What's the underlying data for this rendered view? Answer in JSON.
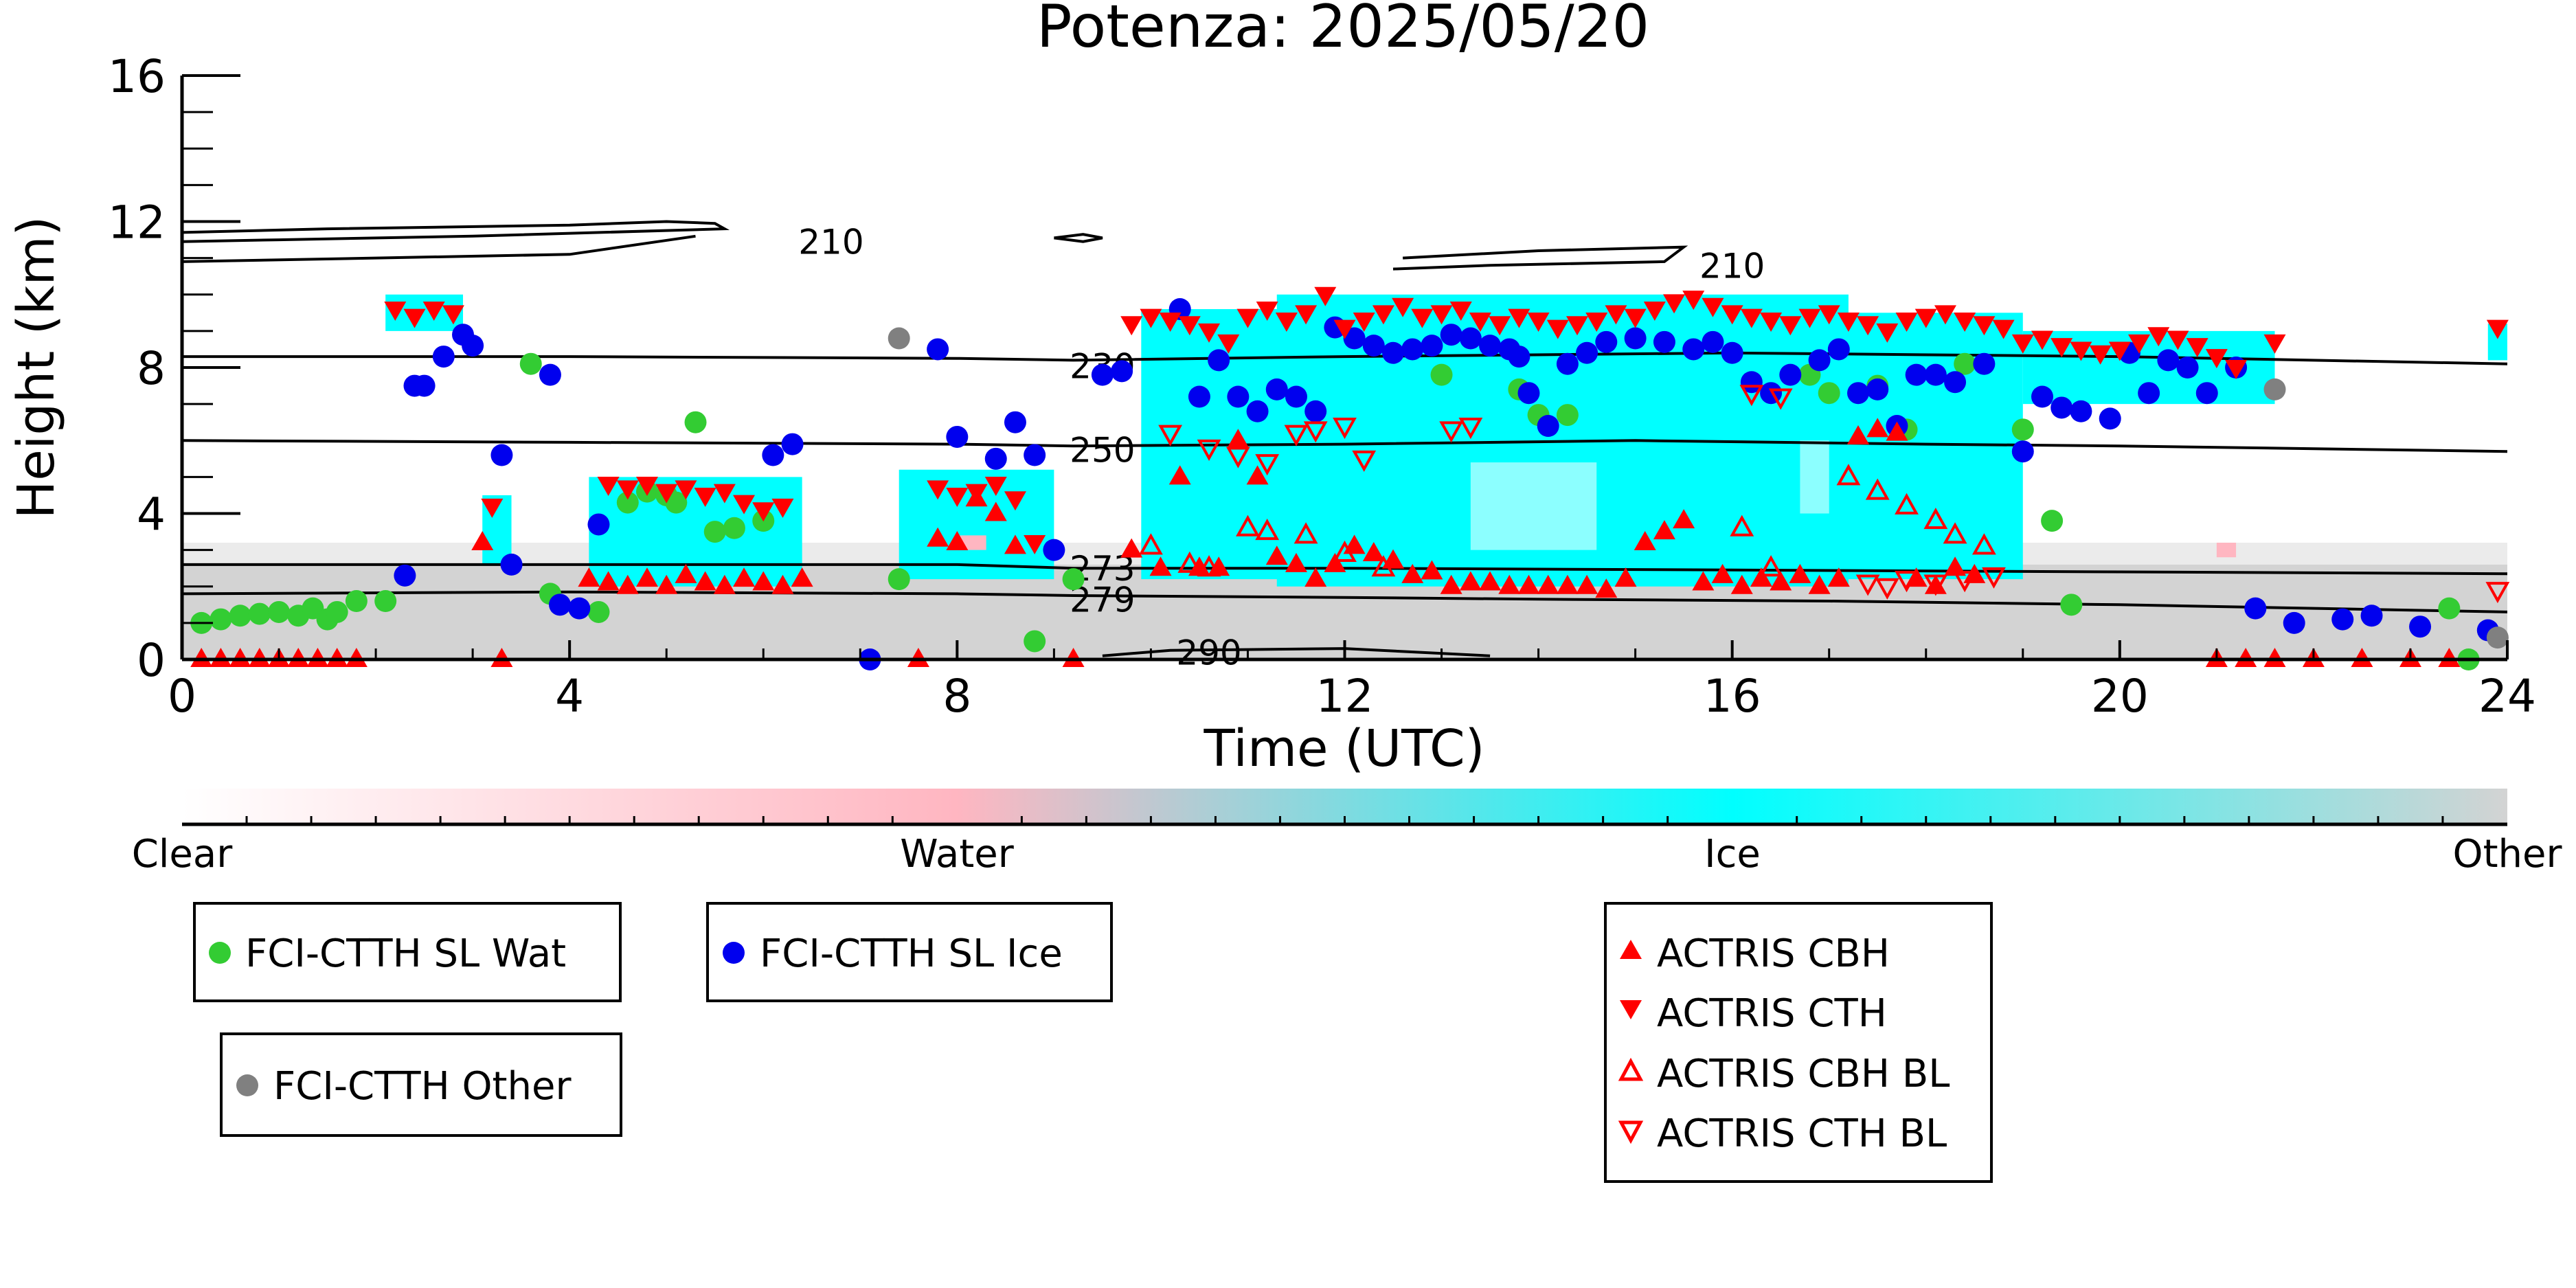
{
  "chart_data": {
    "type": "scatter",
    "title": "Potenza: 2025/05/20",
    "xlabel": "Time (UTC)",
    "ylabel": "Height (km)",
    "xlim": [
      0,
      24
    ],
    "ylim": [
      0,
      16
    ],
    "x_ticks": [
      "0",
      "4",
      "8",
      "12",
      "16",
      "20",
      "24"
    ],
    "y_ticks": [
      "0",
      "4",
      "8",
      "12",
      "16"
    ],
    "colorbar": {
      "labels": [
        "Clear",
        "Water",
        "Ice",
        "Other"
      ],
      "colors": [
        "#ffffff",
        "#ffb6c1",
        "#00ffff",
        "#d3d3d3"
      ]
    },
    "contours": [
      {
        "label": "210",
        "points": [
          [
            0,
            11.7
          ],
          [
            1.5,
            11.8
          ],
          [
            4,
            11.9
          ],
          [
            5,
            12
          ],
          [
            5.5,
            11.95
          ],
          [
            5.6,
            11.8
          ],
          [
            3,
            11.6
          ],
          [
            1,
            11.5
          ],
          [
            0,
            11.45
          ]
        ]
      },
      {
        "label": "210",
        "points": [
          [
            0,
            10.9
          ],
          [
            2,
            11.0
          ],
          [
            4,
            11.1
          ],
          [
            5.3,
            11.6
          ]
        ]
      },
      {
        "label": "210",
        "points": [
          [
            9.0,
            11.55
          ],
          [
            9.3,
            11.45
          ],
          [
            9.5,
            11.55
          ],
          [
            9.3,
            11.65
          ],
          [
            9.0,
            11.55
          ]
        ]
      },
      {
        "label": "210",
        "points": [
          [
            12.5,
            10.7
          ],
          [
            13.5,
            10.8
          ],
          [
            15.3,
            10.9
          ],
          [
            15.5,
            11.3
          ],
          [
            14,
            11.2
          ],
          [
            12.6,
            11.0
          ]
        ]
      },
      {
        "label": "230",
        "points": [
          [
            0,
            8.3
          ],
          [
            4,
            8.3
          ],
          [
            8,
            8.25
          ],
          [
            9.2,
            8.2
          ],
          [
            12,
            8.3
          ],
          [
            16,
            8.4
          ],
          [
            20,
            8.3
          ],
          [
            24,
            8.1
          ]
        ]
      },
      {
        "label": "250",
        "points": [
          [
            0,
            6.0
          ],
          [
            4,
            5.95
          ],
          [
            8,
            5.9
          ],
          [
            9.2,
            5.85
          ],
          [
            12,
            5.9
          ],
          [
            15,
            6.0
          ],
          [
            18,
            5.9
          ],
          [
            20,
            5.85
          ],
          [
            24,
            5.7
          ]
        ]
      },
      {
        "label": "273",
        "points": [
          [
            0,
            2.6
          ],
          [
            4,
            2.6
          ],
          [
            8,
            2.6
          ],
          [
            9.2,
            2.5
          ],
          [
            12,
            2.5
          ],
          [
            16,
            2.45
          ],
          [
            20,
            2.4
          ],
          [
            24,
            2.35
          ]
        ]
      },
      {
        "label": "279",
        "points": [
          [
            0,
            1.8
          ],
          [
            4,
            1.85
          ],
          [
            8,
            1.8
          ],
          [
            9.2,
            1.75
          ],
          [
            12,
            1.7
          ],
          [
            14,
            1.65
          ],
          [
            17,
            1.6
          ],
          [
            20,
            1.5
          ],
          [
            24,
            1.3
          ]
        ]
      },
      {
        "label": "290",
        "points": [
          [
            9.5,
            0.1
          ],
          [
            10.2,
            0.25
          ],
          [
            12,
            0.3
          ],
          [
            13.5,
            0.1
          ]
        ]
      }
    ],
    "series": [
      {
        "name": "FCI-CTTH SL Wat",
        "color": "#33cc33",
        "marker": "circle",
        "x": [
          0.2,
          0.4,
          0.6,
          0.8,
          1.0,
          1.2,
          1.35,
          1.5,
          1.6,
          1.8,
          2.1,
          3.6,
          3.8,
          4.3,
          4.6,
          4.8,
          5.0,
          5.1,
          5.3,
          5.5,
          5.7,
          6.0,
          7.4,
          8.8,
          9.2,
          13.0,
          13.8,
          14.0,
          14.3,
          16.8,
          17.0,
          17.5,
          17.8,
          18.4,
          19.0,
          19.3,
          19.5,
          23.4,
          23.6
        ],
        "y": [
          1.0,
          1.1,
          1.2,
          1.25,
          1.3,
          1.2,
          1.4,
          1.1,
          1.3,
          1.6,
          1.6,
          8.1,
          1.8,
          1.3,
          4.3,
          4.6,
          4.5,
          4.3,
          6.5,
          3.5,
          3.6,
          3.8,
          2.2,
          0.5,
          2.2,
          7.8,
          7.4,
          6.7,
          6.7,
          7.8,
          7.3,
          7.5,
          6.3,
          8.1,
          6.3,
          3.8,
          1.5,
          1.4,
          0.0
        ]
      },
      {
        "name": "FCI-CTTH SL Ice",
        "color": "#0000ee",
        "marker": "circle",
        "x": [
          2.3,
          2.4,
          2.5,
          2.7,
          2.9,
          3.0,
          3.3,
          3.4,
          3.8,
          3.9,
          4.1,
          4.3,
          6.1,
          6.3,
          7.1,
          7.8,
          8.0,
          8.4,
          8.6,
          8.8,
          9.0,
          9.5,
          9.7,
          10.3,
          10.5,
          10.7,
          10.9,
          11.1,
          11.3,
          11.5,
          11.7,
          11.9,
          12.1,
          12.3,
          12.5,
          12.7,
          12.9,
          13.1,
          13.3,
          13.5,
          13.7,
          13.8,
          13.9,
          14.1,
          14.3,
          14.5,
          14.7,
          15.0,
          15.3,
          15.6,
          15.8,
          16.0,
          16.2,
          16.4,
          16.6,
          16.9,
          17.1,
          17.3,
          17.5,
          17.7,
          17.9,
          18.1,
          18.3,
          18.6,
          19.0,
          19.2,
          19.4,
          19.6,
          19.9,
          20.1,
          20.3,
          20.5,
          20.7,
          20.9,
          21.2,
          21.4,
          21.8,
          22.3,
          22.6,
          23.1,
          23.8
        ],
        "y": [
          2.3,
          7.5,
          7.5,
          8.3,
          8.9,
          8.6,
          5.6,
          2.6,
          7.8,
          1.5,
          1.4,
          3.7,
          5.6,
          5.9,
          0.0,
          8.5,
          6.1,
          5.5,
          6.5,
          5.6,
          3.0,
          7.8,
          7.9,
          9.6,
          7.2,
          8.2,
          7.2,
          6.8,
          7.4,
          7.2,
          6.8,
          9.1,
          8.8,
          8.6,
          8.4,
          8.5,
          8.6,
          8.9,
          8.8,
          8.6,
          8.5,
          8.3,
          7.3,
          6.4,
          8.1,
          8.4,
          8.7,
          8.8,
          8.7,
          8.5,
          8.7,
          8.4,
          7.6,
          7.3,
          7.8,
          8.2,
          8.5,
          7.3,
          7.4,
          6.4,
          7.8,
          7.8,
          7.6,
          8.1,
          5.7,
          7.2,
          6.9,
          6.8,
          6.6,
          8.4,
          7.3,
          8.2,
          8.0,
          7.3,
          8.0,
          1.4,
          1.0,
          1.1,
          1.2,
          0.9,
          0.8
        ]
      },
      {
        "name": "FCI-CTTH Other",
        "color": "#808080",
        "marker": "circle",
        "x": [
          7.4,
          21.6,
          23.9
        ],
        "y": [
          8.8,
          7.4,
          0.6
        ]
      },
      {
        "name": "ACTRIS CBH",
        "color": "#ff0000",
        "marker": "triangle-up",
        "x": [
          0.2,
          0.4,
          0.6,
          0.8,
          1.0,
          1.2,
          1.4,
          1.6,
          1.8,
          3.1,
          3.3,
          4.2,
          4.4,
          4.6,
          4.8,
          5.0,
          5.2,
          5.4,
          5.6,
          5.8,
          6.0,
          6.2,
          6.4,
          7.6,
          7.8,
          8.0,
          8.2,
          8.4,
          8.6,
          9.2,
          9.8,
          10.1,
          10.3,
          10.5,
          10.7,
          10.9,
          11.1,
          11.3,
          11.5,
          11.7,
          11.9,
          12.1,
          12.3,
          12.5,
          12.7,
          12.9,
          13.1,
          13.3,
          13.5,
          13.7,
          13.9,
          14.1,
          14.3,
          14.5,
          14.7,
          14.9,
          15.1,
          15.3,
          15.5,
          15.7,
          15.9,
          16.1,
          16.3,
          16.5,
          16.7,
          16.9,
          17.1,
          17.3,
          17.5,
          17.7,
          17.9,
          18.1,
          18.3,
          18.5,
          21.0,
          21.3,
          21.6,
          22.0,
          22.5,
          23.0,
          23.4
        ],
        "y": [
          0.0,
          0.0,
          0.0,
          0.0,
          0.0,
          0.0,
          0.0,
          0.0,
          0.0,
          3.2,
          0.0,
          2.2,
          2.1,
          2.0,
          2.2,
          2.0,
          2.3,
          2.1,
          2.0,
          2.2,
          2.1,
          2.0,
          2.2,
          0.0,
          3.3,
          3.2,
          4.4,
          4.0,
          3.1,
          0.0,
          3.0,
          2.5,
          5.0,
          2.5,
          2.5,
          6.0,
          5.0,
          2.8,
          2.6,
          2.2,
          2.6,
          3.1,
          2.9,
          2.7,
          2.3,
          2.4,
          2.0,
          2.1,
          2.1,
          2.0,
          2.0,
          2.0,
          2.0,
          2.0,
          1.9,
          2.2,
          3.2,
          3.5,
          3.8,
          2.1,
          2.3,
          2.0,
          2.2,
          2.1,
          2.3,
          2.0,
          2.2,
          6.1,
          6.3,
          6.2,
          2.2,
          2.0,
          2.5,
          2.3,
          0.0,
          0.0,
          0.0,
          0.0,
          0.0,
          0.0,
          0.0
        ]
      },
      {
        "name": "ACTRIS CTH",
        "color": "#ff0000",
        "marker": "triangle-down",
        "x": [
          2.2,
          2.4,
          2.6,
          2.8,
          3.2,
          4.4,
          4.6,
          4.8,
          5.0,
          5.2,
          5.4,
          5.6,
          5.8,
          6.0,
          6.2,
          7.8,
          8.0,
          8.2,
          8.4,
          8.6,
          8.8,
          9.8,
          10.0,
          10.2,
          10.4,
          10.6,
          10.8,
          11.0,
          11.2,
          11.4,
          11.6,
          11.8,
          12.0,
          12.2,
          12.4,
          12.6,
          12.8,
          13.0,
          13.2,
          13.4,
          13.6,
          13.8,
          14.0,
          14.2,
          14.4,
          14.6,
          14.8,
          15.0,
          15.2,
          15.4,
          15.6,
          15.8,
          16.0,
          16.2,
          16.4,
          16.6,
          16.8,
          17.0,
          17.2,
          17.4,
          17.6,
          17.8,
          18.0,
          18.2,
          18.4,
          18.6,
          18.8,
          19.0,
          19.2,
          19.4,
          19.6,
          19.8,
          20.0,
          20.2,
          20.4,
          20.6,
          20.8,
          21.0,
          21.2,
          21.6,
          23.9
        ],
        "y": [
          9.6,
          9.4,
          9.6,
          9.5,
          4.2,
          4.8,
          4.7,
          4.8,
          4.6,
          4.7,
          4.5,
          4.6,
          4.3,
          4.1,
          4.2,
          4.7,
          4.5,
          4.6,
          4.8,
          4.4,
          3.2,
          9.2,
          9.4,
          9.3,
          9.2,
          9.0,
          8.7,
          9.4,
          9.6,
          9.3,
          9.5,
          10.0,
          9.1,
          9.3,
          9.5,
          9.7,
          9.4,
          9.5,
          9.6,
          9.3,
          9.2,
          9.4,
          9.3,
          9.1,
          9.2,
          9.3,
          9.5,
          9.4,
          9.6,
          9.8,
          9.9,
          9.7,
          9.5,
          9.4,
          9.3,
          9.2,
          9.4,
          9.5,
          9.3,
          9.2,
          9.0,
          9.3,
          9.4,
          9.5,
          9.3,
          9.2,
          9.1,
          8.7,
          8.8,
          8.6,
          8.5,
          8.4,
          8.5,
          8.7,
          8.9,
          8.8,
          8.6,
          8.3,
          8.0,
          8.7,
          9.1
        ]
      },
      {
        "name": "ACTRIS CBH BL",
        "color": "#ff0000",
        "marker": "triangle-up-open",
        "x": [
          10.0,
          10.4,
          10.6,
          11.0,
          11.2,
          11.6,
          12.0,
          12.4,
          16.1,
          16.4,
          17.2,
          17.5,
          17.8,
          18.1,
          18.3,
          18.6
        ],
        "y": [
          3.1,
          2.6,
          2.5,
          3.6,
          3.5,
          3.4,
          2.9,
          2.5,
          3.6,
          2.5,
          5.0,
          4.6,
          4.2,
          3.8,
          3.4,
          3.1
        ]
      },
      {
        "name": "ACTRIS CTH BL",
        "color": "#ff0000",
        "marker": "triangle-down-open",
        "x": [
          10.2,
          10.6,
          10.9,
          11.2,
          11.5,
          11.7,
          12.0,
          12.2,
          13.1,
          13.3,
          16.2,
          16.5,
          17.4,
          17.6,
          17.8,
          18.1,
          18.4,
          18.7,
          23.9
        ],
        "y": [
          6.2,
          5.8,
          5.6,
          5.4,
          6.2,
          6.3,
          6.4,
          5.5,
          6.3,
          6.4,
          7.3,
          7.2,
          2.1,
          2.0,
          2.2,
          2.1,
          2.2,
          2.3,
          1.9
        ]
      }
    ]
  }
}
